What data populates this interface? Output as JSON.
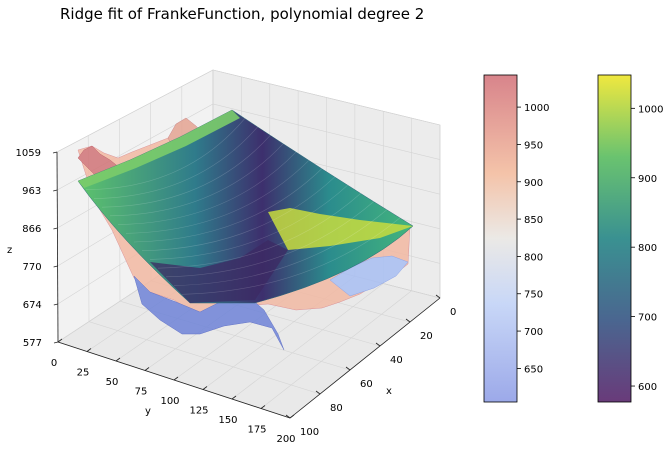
{
  "chart_data": {
    "type": "surface3d",
    "title": "Ridge fit of FrankeFunction, polynomial degree 2",
    "xlabel": "x",
    "ylabel": "y",
    "zlabel": "z",
    "x_ticks": [
      "0",
      "20",
      "40",
      "60",
      "80",
      "100"
    ],
    "y_ticks": [
      "0",
      "25",
      "50",
      "75",
      "100",
      "125",
      "150",
      "175",
      "200"
    ],
    "z_ticks": [
      "577",
      "674",
      "770",
      "866",
      "963",
      "1059"
    ],
    "xlim": [
      0,
      100
    ],
    "ylim": [
      0,
      200
    ],
    "zlim": [
      577,
      1059
    ],
    "grid": true,
    "series": [
      {
        "kind": "data-surface",
        "colormap": "coolwarm",
        "alpha": 0.5
      },
      {
        "kind": "ridge-fit-surface",
        "colormap": "viridis",
        "degree": 2
      }
    ],
    "colorbars": [
      {
        "colormap": "coolwarm",
        "ticks": [
          "650",
          "700",
          "750",
          "800",
          "850",
          "900",
          "950",
          "1000"
        ],
        "range": [
          605,
          1043
        ]
      },
      {
        "colormap": "viridis",
        "ticks": [
          "600",
          "700",
          "800",
          "900",
          "1000"
        ],
        "range": [
          577,
          1048
        ]
      }
    ]
  }
}
